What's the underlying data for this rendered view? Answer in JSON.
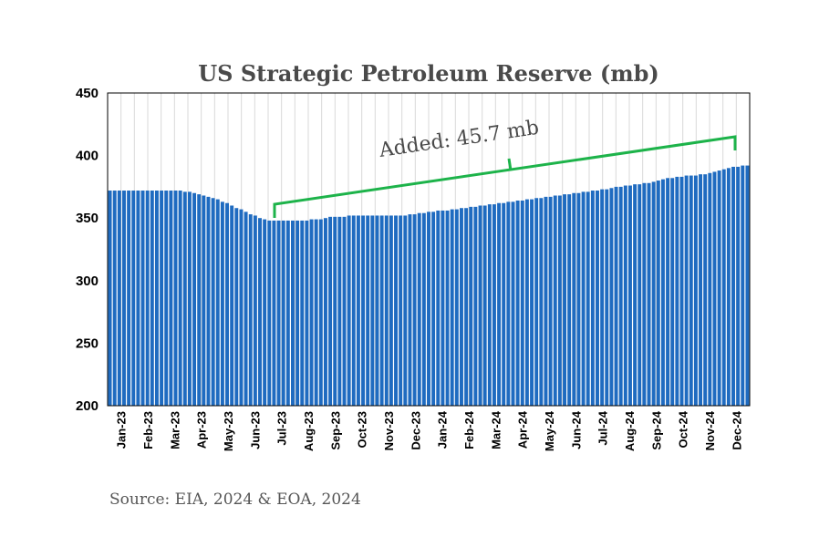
{
  "chart_data": {
    "type": "bar",
    "title": "US Strategic Petroleum Reserve  (mb)",
    "ylim": [
      200,
      450
    ],
    "yticks": [
      "200",
      "250",
      "300",
      "350",
      "400",
      "450"
    ],
    "grid": "vertical",
    "bar_color": "#1f6bc0",
    "x_labels": [
      "Jan-23",
      "Feb-23",
      "Mar-23",
      "Apr-23",
      "May-23",
      "Jun-23",
      "Jul-23",
      "Aug-23",
      "Sep-23",
      "Oct-23",
      "Nov-23",
      "Dec-23",
      "Jan-24",
      "Feb-24",
      "Mar-24",
      "Apr-24",
      "May-24",
      "Jun-24",
      "Jul-24",
      "Aug-24",
      "Sep-24",
      "Oct-24",
      "Nov-24",
      "Dec-24"
    ],
    "series": [
      {
        "values": [
          372,
          372,
          372,
          372,
          372,
          372,
          372,
          372,
          372,
          372,
          372,
          372,
          372,
          372,
          372,
          372,
          371,
          371,
          370,
          369,
          368,
          367,
          366,
          365,
          363,
          362,
          360,
          358,
          357,
          355,
          353,
          352,
          350,
          349,
          348,
          348,
          348,
          348,
          348,
          348,
          348,
          348,
          348,
          349,
          349,
          349,
          350,
          351,
          351,
          351,
          351,
          352,
          352,
          352,
          352,
          352,
          352,
          352,
          352,
          352,
          352,
          352,
          352,
          352,
          353,
          353,
          354,
          354,
          355,
          355,
          356,
          356,
          356,
          357,
          357,
          358,
          358,
          359,
          359,
          360,
          360,
          361,
          361,
          362,
          362,
          363,
          363,
          364,
          364,
          365,
          365,
          366,
          366,
          367,
          367,
          368,
          368,
          369,
          369,
          370,
          370,
          371,
          371,
          372,
          372,
          373,
          373,
          374,
          375,
          375,
          376,
          376,
          377,
          377,
          378,
          378,
          379,
          380,
          381,
          382,
          382,
          383,
          383,
          384,
          384,
          384,
          385,
          385,
          386,
          387,
          388,
          389,
          390,
          391,
          391,
          392,
          392
        ]
      }
    ],
    "annotation": {
      "text": "Added: 45.7 mb",
      "color": "#1db34a"
    }
  },
  "source": "Source: EIA, 2024 & EOA, 2024"
}
